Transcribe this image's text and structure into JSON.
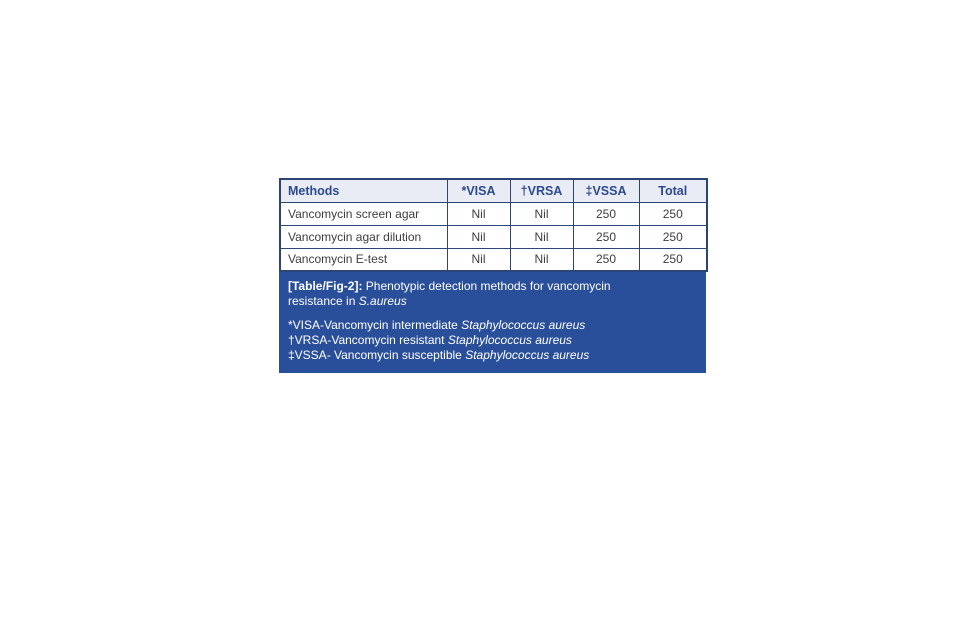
{
  "colors": {
    "table_border": "#2c4577",
    "header_background": "#eaecf5",
    "header_text": "#2c4a8f",
    "cell_text": "#3d3d3d",
    "caption_background": "#2a4f9a",
    "caption_text": "#ffffff",
    "page_background": "#ffffff"
  },
  "table": {
    "columns": [
      "Methods",
      "*VISA",
      "†VRSA",
      "‡VSSA",
      "Total"
    ],
    "rows": [
      [
        "Vancomycin screen agar",
        "Nil",
        "Nil",
        "250",
        "250"
      ],
      [
        "Vancomycin agar dilution",
        "Nil",
        "Nil",
        "250",
        "250"
      ],
      [
        "Vancomycin E-test",
        "Nil",
        "Nil",
        "250",
        "250"
      ]
    ]
  },
  "caption": {
    "label": "[Table/Fig-2]:",
    "text": " Phenotypic detection methods for vancomycin resistance in ",
    "italic": "S.aureus"
  },
  "footnotes": [
    {
      "prefix": "*VISA-Vancomycin intermediate ",
      "species": "Staphylococcus aureus"
    },
    {
      "prefix": "†VRSA-Vancomycin resistant ",
      "species": "Staphylococcus aureus"
    },
    {
      "prefix": "‡VSSA- Vancomycin susceptible ",
      "species": "Staphylococcus aureus"
    }
  ],
  "chart_data": {
    "type": "table",
    "title": "[Table/Fig-2]: Phenotypic detection methods for vancomycin resistance in S.aureus",
    "columns": [
      "Methods",
      "*VISA",
      "†VRSA",
      "‡VSSA",
      "Total"
    ],
    "rows": [
      [
        "Vancomycin screen agar",
        "Nil",
        "Nil",
        "250",
        "250"
      ],
      [
        "Vancomycin agar dilution",
        "Nil",
        "Nil",
        "250",
        "250"
      ],
      [
        "Vancomycin E-test",
        "Nil",
        "Nil",
        "250",
        "250"
      ]
    ]
  }
}
